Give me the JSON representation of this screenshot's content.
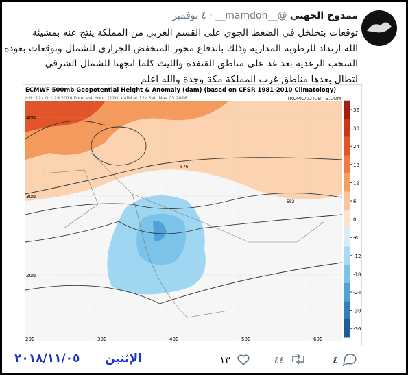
{
  "user": {
    "name": "ممدوح الجهني",
    "handle": "@__mamdoh__",
    "date": "٤ نوفمبر"
  },
  "tweet": {
    "lines": [
      "توقعات بتخلخل في الضغط الجوي على القسم الغربي من المملكة ينتج عنه بمشيئة",
      "الله ارتداد للرطوبة المدارية وذلك باندفاع محور المنخفض الجراري للشمال وتوقعات بعودة",
      "السحب الرعدية بعد غد على مناطق  القنفذة والليث كلما اتجهنا للشمال الشرقي",
      "لتطال بعدها مناطق غرب المملكة مكة وجدة والله اعلم"
    ]
  },
  "map": {
    "title": "ECMWF 500mb Geopotential Height & Anomaly (dam) (based on CFSR 1981-2010 Climatology)",
    "subtitle": "Init: 12z Oct 29 2018   Forecast Hour: [120]   valid at 12z Sat, Nov 03 2018",
    "source": "TROPICALTIDBITS.COM",
    "colorbar": [
      36,
      30,
      24,
      18,
      12,
      6,
      0,
      -6,
      -12,
      -18,
      -24,
      -30,
      -36
    ],
    "lat_labels": [
      "40N",
      "30N",
      "20N"
    ],
    "lon_labels": [
      "20E",
      "30E",
      "40E",
      "50E",
      "60E"
    ],
    "contour_labels": [
      "576",
      "582"
    ]
  },
  "footer": {
    "date_stamp": "٢٠١٨/١١/٠٥",
    "day": "الإثنين",
    "replies": "٤",
    "retweets": "٤٤",
    "likes": "١٣"
  }
}
